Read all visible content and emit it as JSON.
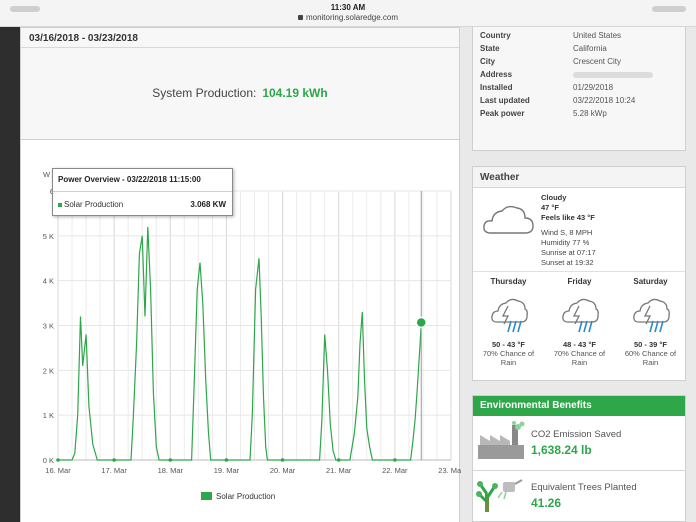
{
  "status_bar": {
    "time": "11:30 AM",
    "url": "monitoring.solaredge.com"
  },
  "production": {
    "date_range": "03/16/2018 - 03/23/2018",
    "label": "System Production:",
    "value": "104.19 kWh"
  },
  "tooltip": {
    "title": "Power Overview - 03/22/2018 11:15:00",
    "series": "Solar Production",
    "value": "3.068 KW"
  },
  "site_info": [
    {
      "key": "Country",
      "value": "United States"
    },
    {
      "key": "State",
      "value": "California"
    },
    {
      "key": "City",
      "value": "Crescent City"
    },
    {
      "key": "Address",
      "value": ""
    },
    {
      "key": "Installed",
      "value": "01/29/2018"
    },
    {
      "key": "Last updated",
      "value": "03/22/2018 10:24"
    },
    {
      "key": "Peak power",
      "value": "5.28 kWp"
    }
  ],
  "weather": {
    "title": "Weather",
    "current": {
      "condition": "Cloudy",
      "temp": "47 °F",
      "feels_like": "Feels like 43 °F",
      "wind": "Wind S, 8 MPH",
      "humidity": "Humidity 77 %",
      "sunrise": "Sunrise at 07:17",
      "sunset": "Sunset at 19:32",
      "icon": "cloud-icon"
    },
    "forecast": [
      {
        "day": "Thursday",
        "temp": "50 - 43 °F",
        "rain_line1": "70% Chance of",
        "rain_line2": "Rain",
        "icon": "rain-cloud-icon"
      },
      {
        "day": "Friday",
        "temp": "48 - 43 °F",
        "rain_line1": "70% Chance of",
        "rain_line2": "Rain",
        "icon": "rain-cloud-icon"
      },
      {
        "day": "Saturday",
        "temp": "50 - 39 °F",
        "rain_line1": "60% Chance of",
        "rain_line2": "Rain",
        "icon": "rain-cloud-icon"
      }
    ]
  },
  "environment": {
    "title": "Environmental Benefits",
    "co2_label": "CO2 Emission Saved",
    "co2_value": "1,638.24 lb",
    "trees_label": "Equivalent Trees Planted",
    "trees_value": "41.26"
  },
  "colors": {
    "accent": "#2ea64a",
    "panel": "#f7f7f7",
    "border": "#cfcfcf"
  },
  "chart_data": {
    "type": "line",
    "title": "",
    "xlabel": "",
    "ylabel": "W",
    "ylim": [
      0,
      6000
    ],
    "x_ticks": [
      "16. Mar",
      "17. Mar",
      "18. Mar",
      "19. Mar",
      "20. Mar",
      "21. Mar",
      "22. Mar",
      "23. Mar"
    ],
    "y_ticks": [
      "0 K",
      "1 K",
      "2 K",
      "3 K",
      "4 K",
      "5 K",
      "6"
    ],
    "legend": "bottom-center",
    "grid": true,
    "series": [
      {
        "name": "Solar Production",
        "color": "#2ea64a",
        "points": [
          [
            16.0,
            0
          ],
          [
            16.25,
            0
          ],
          [
            16.3,
            150
          ],
          [
            16.35,
            1000
          ],
          [
            16.4,
            3200
          ],
          [
            16.44,
            2100
          ],
          [
            16.5,
            2800
          ],
          [
            16.55,
            1200
          ],
          [
            16.62,
            350
          ],
          [
            16.7,
            0
          ],
          [
            17.0,
            0
          ],
          [
            17.3,
            0
          ],
          [
            17.34,
            900
          ],
          [
            17.4,
            2600
          ],
          [
            17.45,
            4600
          ],
          [
            17.5,
            5000
          ],
          [
            17.55,
            3200
          ],
          [
            17.6,
            5200
          ],
          [
            17.65,
            3800
          ],
          [
            17.7,
            1500
          ],
          [
            17.75,
            300
          ],
          [
            17.8,
            0
          ],
          [
            18.0,
            0
          ],
          [
            18.38,
            0
          ],
          [
            18.42,
            1500
          ],
          [
            18.48,
            3800
          ],
          [
            18.53,
            4400
          ],
          [
            18.58,
            3500
          ],
          [
            18.63,
            1800
          ],
          [
            18.68,
            600
          ],
          [
            18.72,
            0
          ],
          [
            19.0,
            0
          ],
          [
            19.42,
            0
          ],
          [
            19.46,
            1000
          ],
          [
            19.52,
            3800
          ],
          [
            19.58,
            4500
          ],
          [
            19.62,
            3200
          ],
          [
            19.66,
            1400
          ],
          [
            19.7,
            300
          ],
          [
            19.73,
            0
          ],
          [
            20.0,
            0
          ],
          [
            20.66,
            0
          ],
          [
            20.7,
            900
          ],
          [
            20.75,
            2800
          ],
          [
            20.8,
            2000
          ],
          [
            20.85,
            800
          ],
          [
            20.9,
            200
          ],
          [
            20.95,
            0
          ],
          [
            21.0,
            0
          ],
          [
            21.2,
            0
          ],
          [
            21.28,
            600
          ],
          [
            21.34,
            1400
          ],
          [
            21.38,
            2600
          ],
          [
            21.42,
            3300
          ],
          [
            21.46,
            1800
          ],
          [
            21.5,
            700
          ],
          [
            21.55,
            300
          ],
          [
            21.6,
            0
          ],
          [
            22.0,
            0
          ],
          [
            22.28,
            0
          ],
          [
            22.32,
            400
          ],
          [
            22.36,
            900
          ],
          [
            22.4,
            1600
          ],
          [
            22.45,
            2600
          ],
          [
            22.47,
            3068
          ]
        ]
      }
    ],
    "highlight_point": {
      "x": 22.47,
      "y": 3068
    }
  }
}
